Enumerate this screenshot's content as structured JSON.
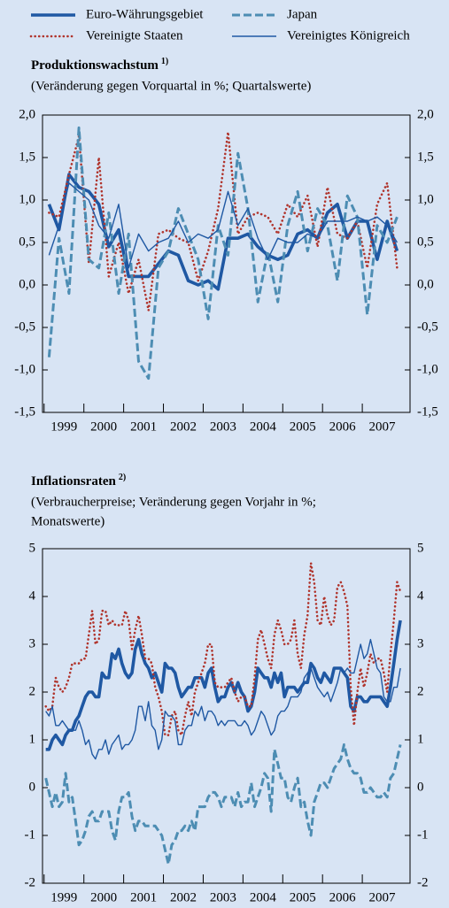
{
  "chart_data": [
    {
      "type": "line",
      "title": "Produktionswachstum",
      "title_note": "1)",
      "subtitle": [
        "(Veränderung gegen Vorquartal in %; Quartalswerte)"
      ],
      "xlim": [
        1998.96,
        2008.2
      ],
      "xticks": [
        1999,
        2000,
        2001,
        2002,
        2003,
        2004,
        2005,
        2006,
        2007
      ],
      "ylim": [
        -1.5,
        2.0
      ],
      "yticks": [
        {
          "value": -1.5,
          "label": "-1,5"
        },
        {
          "value": -1.0,
          "label": "-1,0"
        },
        {
          "value": -0.5,
          "label": "-0,5"
        },
        {
          "value": 0,
          "label": "0,0"
        },
        {
          "value": 0.5,
          "label": "0,5"
        },
        {
          "value": 1.0,
          "label": "1,0"
        },
        {
          "value": 1.5,
          "label": "1,5"
        },
        {
          "value": 2.0,
          "label": "2,0"
        }
      ],
      "x": [
        1999.125,
        1999.375,
        1999.625,
        1999.875,
        2000.125,
        2000.375,
        2000.625,
        2000.875,
        2001.125,
        2001.375,
        2001.625,
        2001.875,
        2002.125,
        2002.375,
        2002.625,
        2002.875,
        2003.125,
        2003.375,
        2003.625,
        2003.875,
        2004.125,
        2004.375,
        2004.625,
        2004.875,
        2005.125,
        2005.375,
        2005.625,
        2005.875,
        2006.125,
        2006.375,
        2006.625,
        2006.875,
        2007.125,
        2007.375,
        2007.625,
        2007.875
      ],
      "series": [
        {
          "name": "Euro-Währungsgebiet",
          "color": "#1f58a3",
          "style": "thick",
          "values": [
            0.95,
            0.65,
            1.3,
            1.15,
            1.1,
            0.95,
            0.45,
            0.65,
            0.1,
            0.1,
            0.1,
            0.25,
            0.4,
            0.35,
            0.05,
            0.0,
            0.05,
            -0.05,
            0.55,
            0.55,
            0.6,
            0.45,
            0.35,
            0.3,
            0.35,
            0.6,
            0.65,
            0.55,
            0.85,
            0.95,
            0.55,
            0.75,
            0.75,
            0.3,
            0.75,
            0.4
          ]
        },
        {
          "name": "Vereinigte Staaten",
          "color": "#b0342c",
          "style": "dotted",
          "values": [
            0.85,
            0.8,
            1.3,
            1.75,
            0.25,
            1.5,
            0.1,
            0.5,
            -0.1,
            0.3,
            -0.3,
            0.6,
            0.65,
            0.55,
            0.5,
            0.05,
            0.4,
            0.9,
            1.8,
            0.6,
            0.8,
            0.85,
            0.8,
            0.6,
            0.95,
            0.8,
            1.05,
            0.45,
            1.15,
            0.6,
            0.55,
            0.75,
            0.2,
            0.95,
            1.2,
            0.2
          ]
        },
        {
          "name": "Japan",
          "color": "#4d8db3",
          "style": "dashed",
          "values": [
            -0.85,
            0.55,
            -0.1,
            1.85,
            0.3,
            0.2,
            0.85,
            -0.1,
            0.6,
            -0.9,
            -1.1,
            0.2,
            0.4,
            0.9,
            0.6,
            0.3,
            -0.4,
            0.7,
            0.35,
            1.55,
            0.9,
            -0.2,
            0.4,
            -0.2,
            0.7,
            1.1,
            0.4,
            0.9,
            0.7,
            0.05,
            1.05,
            0.8,
            -0.35,
            0.7,
            0.5,
            0.8
          ]
        },
        {
          "name": "Vereinigtes Königreich",
          "color": "#1f58a3",
          "style": "thin",
          "values": [
            0.35,
            0.7,
            1.2,
            1.1,
            1.0,
            0.7,
            0.55,
            0.95,
            0.2,
            0.6,
            0.4,
            0.5,
            0.55,
            0.75,
            0.5,
            0.6,
            0.55,
            0.65,
            1.1,
            0.7,
            0.9,
            0.55,
            0.3,
            0.55,
            0.5,
            0.5,
            0.6,
            0.55,
            0.75,
            0.75,
            0.75,
            0.8,
            0.75,
            0.8,
            0.7,
            0.5
          ]
        }
      ]
    },
    {
      "type": "line",
      "title": "Inflationsraten",
      "title_note": "2)",
      "subtitle": [
        "(Verbraucherpreise; Veränderung gegen Vorjahr in %;",
        "Monatswerte)"
      ],
      "xlim": [
        1998.96,
        2008.2
      ],
      "xticks": [
        1999,
        2000,
        2001,
        2002,
        2003,
        2004,
        2005,
        2006,
        2007
      ],
      "ylim": [
        -2,
        5
      ],
      "yticks": [
        -2,
        -1,
        0,
        1,
        2,
        3,
        4,
        5
      ],
      "x": [
        1999.042,
        1999.125,
        1999.208,
        1999.292,
        1999.375,
        1999.458,
        1999.542,
        1999.625,
        1999.708,
        1999.792,
        1999.875,
        1999.958,
        2000.042,
        2000.125,
        2000.208,
        2000.292,
        2000.375,
        2000.458,
        2000.542,
        2000.625,
        2000.708,
        2000.792,
        2000.875,
        2000.958,
        2001.042,
        2001.125,
        2001.208,
        2001.292,
        2001.375,
        2001.458,
        2001.542,
        2001.625,
        2001.708,
        2001.792,
        2001.875,
        2001.958,
        2002.042,
        2002.125,
        2002.208,
        2002.292,
        2002.375,
        2002.458,
        2002.542,
        2002.625,
        2002.708,
        2002.792,
        2002.875,
        2002.958,
        2003.042,
        2003.125,
        2003.208,
        2003.292,
        2003.375,
        2003.458,
        2003.542,
        2003.625,
        2003.708,
        2003.792,
        2003.875,
        2003.958,
        2004.042,
        2004.125,
        2004.208,
        2004.292,
        2004.375,
        2004.458,
        2004.542,
        2004.625,
        2004.708,
        2004.792,
        2004.875,
        2004.958,
        2005.042,
        2005.125,
        2005.208,
        2005.292,
        2005.375,
        2005.458,
        2005.542,
        2005.625,
        2005.708,
        2005.792,
        2005.875,
        2005.958,
        2006.042,
        2006.125,
        2006.208,
        2006.292,
        2006.375,
        2006.458,
        2006.542,
        2006.625,
        2006.708,
        2006.792,
        2006.875,
        2006.958,
        2007.042,
        2007.125,
        2007.208,
        2007.292,
        2007.375,
        2007.458,
        2007.542,
        2007.625,
        2007.708,
        2007.792,
        2007.875,
        2007.958
      ],
      "series": [
        {
          "color": "#1f58a3",
          "style": "thick",
          "values": [
            0.8,
            0.8,
            1.0,
            1.1,
            1.0,
            0.9,
            1.1,
            1.2,
            1.2,
            1.4,
            1.5,
            1.7,
            1.9,
            2.0,
            2.0,
            1.9,
            1.9,
            2.4,
            2.3,
            2.3,
            2.8,
            2.7,
            2.9,
            2.6,
            2.4,
            2.3,
            2.4,
            2.9,
            3.1,
            2.8,
            2.6,
            2.5,
            2.3,
            2.4,
            2.2,
            2.0,
            2.6,
            2.5,
            2.5,
            2.4,
            2.1,
            1.9,
            2.0,
            2.1,
            2.1,
            2.3,
            2.3,
            2.3,
            2.1,
            2.4,
            2.5,
            2.1,
            1.8,
            1.9,
            1.9,
            2.1,
            2.2,
            2.0,
            2.2,
            2.0,
            1.9,
            1.6,
            1.7,
            2.0,
            2.5,
            2.4,
            2.3,
            2.3,
            2.1,
            2.4,
            2.2,
            2.4,
            1.9,
            2.1,
            2.1,
            2.1,
            2.0,
            2.1,
            2.2,
            2.2,
            2.6,
            2.5,
            2.3,
            2.2,
            2.4,
            2.3,
            2.2,
            2.5,
            2.5,
            2.5,
            2.4,
            2.3,
            1.7,
            1.6,
            1.9,
            1.9,
            1.8,
            1.8,
            1.9,
            1.9,
            1.9,
            1.9,
            1.8,
            1.7,
            2.1,
            2.6,
            3.1,
            3.5
          ]
        },
        {
          "color": "#b0342c",
          "style": "dotted",
          "values": [
            1.7,
            1.6,
            1.7,
            2.3,
            2.1,
            2.0,
            2.1,
            2.3,
            2.6,
            2.6,
            2.6,
            2.7,
            2.7,
            3.2,
            3.7,
            3.0,
            3.1,
            3.7,
            3.7,
            3.4,
            3.5,
            3.4,
            3.4,
            3.4,
            3.7,
            3.5,
            2.9,
            3.3,
            3.6,
            3.2,
            2.7,
            2.7,
            2.6,
            2.1,
            1.9,
            1.6,
            1.1,
            1.1,
            1.5,
            1.6,
            1.2,
            1.1,
            1.5,
            1.8,
            1.5,
            2.0,
            2.2,
            2.4,
            2.6,
            3.0,
            3.0,
            2.2,
            2.1,
            2.1,
            2.1,
            2.2,
            2.3,
            2.0,
            1.8,
            1.9,
            1.9,
            1.7,
            1.7,
            2.3,
            3.1,
            3.3,
            3.0,
            2.7,
            2.5,
            3.2,
            3.5,
            3.3,
            3.0,
            3.0,
            3.1,
            3.5,
            2.8,
            2.5,
            3.2,
            3.6,
            4.7,
            4.3,
            3.5,
            3.4,
            4.0,
            3.6,
            3.4,
            3.5,
            4.2,
            4.3,
            4.1,
            3.8,
            2.1,
            1.3,
            2.0,
            2.5,
            2.1,
            2.4,
            2.8,
            2.6,
            2.7,
            2.7,
            2.4,
            2.0,
            2.8,
            3.5,
            4.3,
            4.1
          ]
        },
        {
          "color": "#4d8db3",
          "style": "dashed",
          "values": [
            0.2,
            -0.1,
            -0.4,
            -0.1,
            -0.4,
            -0.3,
            0.3,
            -0.3,
            -0.2,
            -0.7,
            -1.2,
            -1.1,
            -0.9,
            -0.6,
            -0.5,
            -0.7,
            -0.7,
            -0.5,
            -0.5,
            -0.5,
            -0.9,
            -1.1,
            -0.5,
            -0.2,
            -0.2,
            -0.1,
            -0.6,
            -0.9,
            -0.7,
            -0.7,
            -0.8,
            -0.8,
            -0.8,
            -0.8,
            -0.9,
            -1.0,
            -1.3,
            -1.6,
            -1.2,
            -1.1,
            -0.9,
            -0.9,
            -0.8,
            -0.9,
            -0.7,
            -0.9,
            -0.4,
            -0.4,
            -0.4,
            -0.2,
            -0.1,
            -0.1,
            -0.2,
            -0.4,
            -0.2,
            -0.2,
            -0.2,
            -0.4,
            -0.1,
            -0.4,
            -0.3,
            -0.3,
            0.1,
            -0.4,
            -0.2,
            0.0,
            0.3,
            0.2,
            -0.5,
            0.8,
            0.5,
            0.2,
            0.2,
            -0.2,
            -0.3,
            0.0,
            0.2,
            -0.4,
            -0.3,
            -0.7,
            -1.0,
            -0.3,
            -0.1,
            0.1,
            0.1,
            0.0,
            0.2,
            0.4,
            0.5,
            0.6,
            0.9,
            0.6,
            0.4,
            0.3,
            0.3,
            0.2,
            -0.1,
            -0.1,
            0.0,
            -0.1,
            -0.2,
            -0.2,
            -0.1,
            -0.2,
            0.2,
            0.3,
            0.6,
            0.9
          ]
        },
        {
          "color": "#1f58a3",
          "style": "thin",
          "values": [
            1.6,
            1.5,
            1.7,
            1.3,
            1.3,
            1.4,
            1.3,
            1.2,
            1.2,
            1.2,
            1.4,
            1.2,
            0.9,
            1.0,
            0.7,
            0.6,
            0.8,
            0.8,
            1.0,
            0.7,
            0.9,
            1.0,
            1.1,
            0.8,
            0.9,
            0.9,
            1.0,
            1.2,
            1.7,
            1.7,
            1.4,
            1.8,
            1.3,
            1.2,
            0.8,
            1.0,
            1.6,
            1.5,
            1.5,
            1.4,
            0.9,
            0.9,
            1.2,
            1.3,
            1.3,
            1.6,
            1.5,
            1.7,
            1.4,
            1.6,
            1.6,
            1.5,
            1.3,
            1.4,
            1.3,
            1.4,
            1.4,
            1.4,
            1.3,
            1.3,
            1.4,
            1.3,
            1.1,
            1.2,
            1.4,
            1.6,
            1.5,
            1.3,
            1.1,
            1.2,
            1.5,
            1.6,
            1.6,
            1.7,
            1.9,
            1.9,
            1.9,
            2.0,
            2.3,
            2.4,
            2.5,
            2.3,
            2.1,
            2.0,
            1.9,
            2.0,
            1.8,
            2.0,
            2.2,
            2.5,
            2.4,
            2.5,
            2.4,
            2.4,
            2.7,
            3.0,
            2.7,
            2.8,
            3.1,
            2.8,
            2.5,
            2.4,
            1.9,
            1.8,
            1.8,
            2.1,
            2.1,
            2.5
          ]
        }
      ]
    }
  ]
}
